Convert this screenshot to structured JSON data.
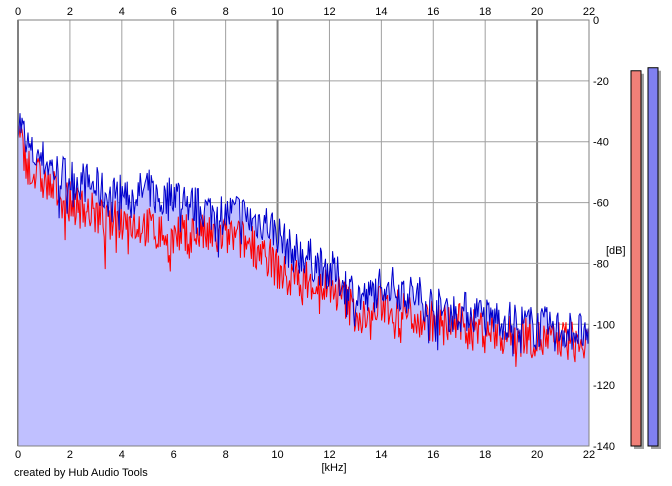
{
  "chart_data": {
    "type": "area",
    "title": "",
    "xlabel": "[kHz]",
    "ylabel": "[dB]",
    "xlim": [
      0,
      22
    ],
    "ylim": [
      -140,
      0
    ],
    "x_ticks": [
      0,
      2,
      4,
      6,
      8,
      10,
      12,
      14,
      16,
      18,
      20,
      22
    ],
    "y_ticks": [
      0,
      -20,
      -40,
      -60,
      -80,
      -100,
      -120,
      -140
    ],
    "grid": true,
    "colors": {
      "fill": "#c0c0ff",
      "red_series": "#ff0000",
      "blue_series": "#0000cc",
      "grid": "#a0a0a0",
      "major_grid": "#808080"
    },
    "series": [
      {
        "color": "#0000cc",
        "x": [
          0,
          0.5,
          1,
          1.5,
          2,
          2.5,
          3,
          3.5,
          4,
          4.5,
          5,
          5.5,
          6,
          6.5,
          7,
          7.5,
          8,
          8.5,
          9,
          9.5,
          10,
          10.5,
          11,
          11.5,
          12,
          12.5,
          13,
          13.5,
          14,
          14.5,
          15,
          15.5,
          16,
          16.5,
          17,
          17.5,
          18,
          18.5,
          19,
          19.5,
          20,
          20.5,
          21,
          21.5,
          22
        ],
        "values": [
          -32,
          -44,
          -46,
          -50,
          -52,
          -53,
          -55,
          -58,
          -57,
          -58,
          -55,
          -60,
          -56,
          -60,
          -62,
          -63,
          -64,
          -63,
          -66,
          -66,
          -70,
          -76,
          -77,
          -80,
          -82,
          -86,
          -90,
          -92,
          -86,
          -88,
          -90,
          -91,
          -94,
          -96,
          -96,
          -96,
          -98,
          -98,
          -99,
          -100,
          -101,
          -101,
          -102,
          -102,
          -104
        ]
      },
      {
        "color": "#ff0000",
        "x": [
          0,
          0.5,
          1,
          1.5,
          2,
          2.5,
          3,
          3.5,
          4,
          4.5,
          5,
          5.5,
          6,
          6.5,
          7,
          7.5,
          8,
          8.5,
          9,
          9.5,
          10,
          10.5,
          11,
          11.5,
          12,
          12.5,
          13,
          13.5,
          14,
          14.5,
          15,
          15.5,
          16,
          16.5,
          17,
          17.5,
          18,
          18.5,
          19,
          19.5,
          20,
          20.5,
          21,
          21.5,
          22
        ],
        "values": [
          -38,
          -50,
          -53,
          -57,
          -60,
          -62,
          -64,
          -67,
          -65,
          -67,
          -68,
          -70,
          -72,
          -70,
          -70,
          -72,
          -71,
          -72,
          -74,
          -76,
          -82,
          -86,
          -84,
          -87,
          -88,
          -91,
          -96,
          -100,
          -93,
          -95,
          -96,
          -98,
          -99,
          -100,
          -100,
          -102,
          -101,
          -103,
          -104,
          -103,
          -105,
          -106,
          -105,
          -106,
          -108
        ]
      }
    ],
    "level_meters": [
      {
        "color": "#f08078",
        "level_db": -18
      },
      {
        "color": "#8080f0",
        "level_db": -17
      }
    ]
  },
  "footer_text": "created by Hub Audio Tools"
}
